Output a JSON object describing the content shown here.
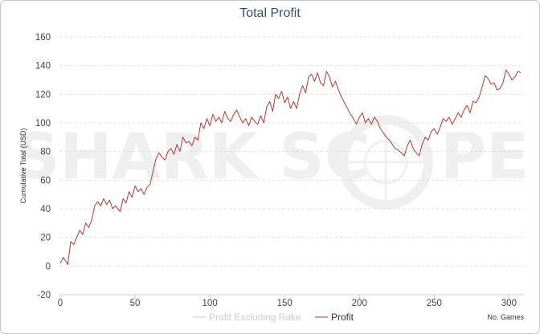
{
  "chart_data": {
    "type": "line",
    "title": "Total Profit",
    "ylabel": "Cumulative Total (USD)",
    "xlabel": "No. Games",
    "xlim": [
      0,
      310
    ],
    "ylim": [
      -20,
      160
    ],
    "xticks": [
      0,
      50,
      100,
      150,
      200,
      250,
      300
    ],
    "yticks": [
      -20,
      0,
      20,
      40,
      60,
      80,
      100,
      120,
      140,
      160
    ],
    "grid": true,
    "legend_position": "bottom-right",
    "watermark": "SHARK SCOPE",
    "series": [
      {
        "name": "Profit Excluding Rake",
        "color": "#cccccc",
        "visible": false,
        "x": [],
        "y": []
      },
      {
        "name": "Profit",
        "color": "#b03a2e",
        "visible": true,
        "x": [
          0,
          2,
          4,
          5,
          7,
          9,
          11,
          13,
          15,
          17,
          19,
          21,
          23,
          25,
          27,
          29,
          31,
          33,
          35,
          37,
          40,
          42,
          44,
          46,
          48,
          50,
          52,
          54,
          56,
          58,
          60,
          62,
          64,
          66,
          68,
          70,
          72,
          74,
          76,
          78,
          80,
          82,
          84,
          86,
          88,
          90,
          92,
          94,
          96,
          98,
          100,
          102,
          104,
          106,
          108,
          110,
          112,
          114,
          116,
          118,
          120,
          122,
          124,
          126,
          128,
          130,
          132,
          134,
          136,
          138,
          140,
          142,
          144,
          146,
          148,
          150,
          152,
          154,
          156,
          158,
          160,
          162,
          164,
          166,
          168,
          170,
          172,
          174,
          176,
          178,
          180,
          182,
          184,
          186,
          188,
          190,
          192,
          194,
          196,
          198,
          200,
          202,
          204,
          206,
          208,
          210,
          212,
          214,
          216,
          218,
          220,
          222,
          224,
          226,
          228,
          230,
          232,
          234,
          236,
          238,
          240,
          242,
          244,
          246,
          248,
          250,
          252,
          254,
          256,
          258,
          260,
          262,
          264,
          266,
          268,
          270,
          272,
          274,
          276,
          278,
          280,
          282,
          284,
          286,
          288,
          290,
          292,
          294,
          296,
          298,
          300,
          302,
          304,
          306,
          308
        ],
        "y": [
          2,
          6,
          3,
          1,
          17,
          15,
          20,
          25,
          22,
          30,
          27,
          32,
          42,
          45,
          42,
          47,
          43,
          46,
          40,
          42,
          38,
          47,
          44,
          52,
          48,
          56,
          52,
          54,
          50,
          55,
          57,
          66,
          75,
          79,
          76,
          74,
          80,
          82,
          78,
          85,
          80,
          90,
          86,
          87,
          84,
          90,
          88,
          100,
          96,
          103,
          98,
          106,
          101,
          104,
          100,
          108,
          103,
          101,
          106,
          109,
          104,
          100,
          103,
          98,
          104,
          101,
          99,
          105,
          100,
          111,
          115,
          108,
          120,
          117,
          122,
          114,
          118,
          110,
          115,
          110,
          120,
          126,
          121,
          132,
          134,
          129,
          135,
          128,
          126,
          136,
          132,
          125,
          129,
          123,
          118,
          114,
          110,
          106,
          103,
          99,
          104,
          107,
          100,
          103,
          99,
          104,
          101,
          96,
          93,
          90,
          88,
          85,
          82,
          81,
          79,
          77,
          84,
          88,
          82,
          79,
          77,
          85,
          90,
          88,
          94,
          96,
          92,
          97,
          103,
          101,
          104,
          99,
          103,
          107,
          104,
          109,
          112,
          107,
          115,
          114,
          118,
          125,
          133,
          131,
          127,
          128,
          123,
          124,
          128,
          137,
          134,
          130,
          132,
          136,
          135
        ]
      }
    ]
  }
}
